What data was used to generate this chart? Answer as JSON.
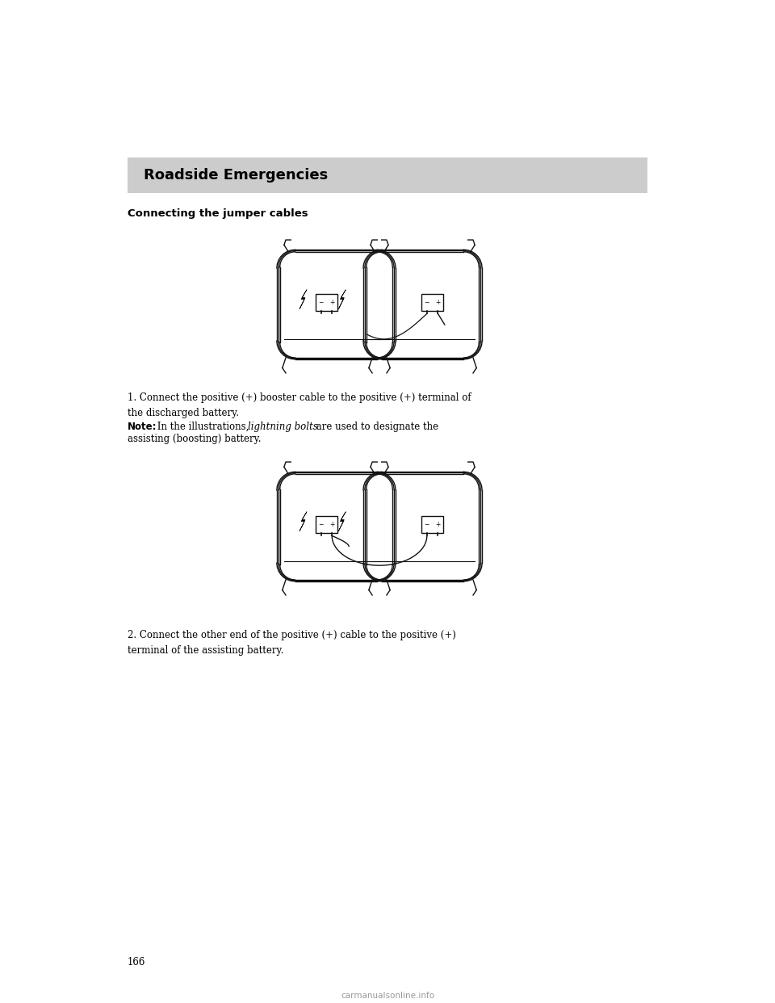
{
  "page_bg": "#ffffff",
  "header_bg": "#cccccc",
  "header_text": "Roadside Emergencies",
  "header_text_color": "#000000",
  "subtitle": "Connecting the jumper cables",
  "para1": "1. Connect the positive (+) booster cable to the positive (+) terminal of\nthe discharged battery.",
  "note_bold": "Note:",
  "note_rest": " In the illustrations, ",
  "note_italic": "lightning bolts",
  "note_end": " are used to designate the\nassisting (boosting) battery.",
  "para2": "2. Connect the other end of the positive (+) cable to the positive (+)\nterminal of the assisting battery.",
  "page_number": "166",
  "watermark": "carmanualsonline.info",
  "text_color": "#000000",
  "font_size_header": 13,
  "font_size_subtitle": 9.5,
  "font_size_body": 8.5,
  "font_size_page": 8.5
}
